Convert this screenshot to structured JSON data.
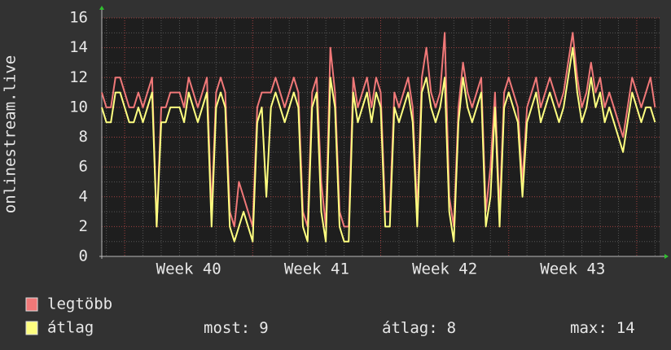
{
  "chart_data": {
    "type": "line",
    "y_label": "onlinestream.live",
    "xlim": [
      0,
      30.5
    ],
    "xticks": [
      {
        "value": 4.75,
        "label": "Week 40"
      },
      {
        "value": 11.75,
        "label": "Week 41"
      },
      {
        "value": 18.75,
        "label": "Week 42"
      },
      {
        "value": 25.75,
        "label": "Week 43"
      }
    ],
    "x_major_grid": [
      1.25,
      8.25,
      15.25,
      22.25,
      29.25
    ],
    "x_minor_grid": [
      0.25,
      2.25,
      3.25,
      4.25,
      5.25,
      6.25,
      7.25,
      9.25,
      10.25,
      11.25,
      12.25,
      13.25,
      14.25,
      16.25,
      17.25,
      18.25,
      19.25,
      20.25,
      21.25,
      23.25,
      24.25,
      25.25,
      26.25,
      27.25,
      28.25,
      30.25
    ],
    "ylim": [
      0,
      16
    ],
    "yticks": [
      0,
      2,
      4,
      6,
      8,
      10,
      12,
      14,
      16
    ],
    "y_minor_grid": [
      1,
      3,
      5,
      7,
      9,
      11,
      13,
      15
    ],
    "grid": true,
    "x": [
      0,
      0.25,
      0.5,
      0.75,
      1,
      1.25,
      1.5,
      1.75,
      2,
      2.25,
      2.5,
      2.75,
      3,
      3.25,
      3.5,
      3.75,
      4,
      4.25,
      4.5,
      4.75,
      5,
      5.25,
      5.5,
      5.75,
      6,
      6.25,
      6.5,
      6.75,
      7,
      7.25,
      7.5,
      7.75,
      8,
      8.25,
      8.5,
      8.75,
      9,
      9.25,
      9.5,
      9.75,
      10,
      10.25,
      10.5,
      10.75,
      11,
      11.25,
      11.5,
      11.75,
      12,
      12.25,
      12.5,
      12.75,
      13,
      13.25,
      13.5,
      13.75,
      14,
      14.25,
      14.5,
      14.75,
      15,
      15.25,
      15.5,
      15.75,
      16,
      16.25,
      16.5,
      16.75,
      17,
      17.25,
      17.5,
      17.75,
      18,
      18.25,
      18.5,
      18.75,
      19,
      19.25,
      19.5,
      19.75,
      20,
      20.25,
      20.5,
      20.75,
      21,
      21.25,
      21.5,
      21.75,
      22,
      22.25,
      22.5,
      22.75,
      23,
      23.25,
      23.5,
      23.75,
      24,
      24.25,
      24.5,
      24.75,
      25,
      25.25,
      25.5,
      25.75,
      26,
      26.25,
      26.5,
      26.75,
      27,
      27.25,
      27.5,
      27.75,
      28,
      28.25,
      28.5,
      28.75,
      29,
      29.25,
      29.5,
      29.75,
      30,
      30.25
    ],
    "series": [
      {
        "name": "legtöbb",
        "color": "#f07878",
        "values": [
          11,
          10,
          10,
          12,
          12,
          11,
          10,
          10,
          11,
          10,
          11,
          12,
          2,
          10,
          10,
          11,
          11,
          11,
          10,
          12,
          11,
          10,
          11,
          12,
          3,
          11,
          12,
          11,
          3,
          2,
          5,
          4,
          3,
          2,
          10,
          11,
          11,
          11,
          12,
          11,
          10,
          11,
          12,
          11,
          3,
          2,
          11,
          12,
          5,
          2,
          14,
          11,
          3,
          2,
          2,
          12,
          10,
          11,
          12,
          10,
          12,
          11,
          3,
          3,
          11,
          10,
          11,
          12,
          10,
          3,
          12,
          14,
          11,
          10,
          11,
          15,
          4,
          2,
          10,
          13,
          11,
          10,
          11,
          12,
          3,
          6,
          11,
          3,
          11,
          12,
          11,
          10,
          5,
          10,
          11,
          12,
          10,
          11,
          12,
          11,
          10,
          11,
          13,
          15,
          12,
          10,
          11,
          13,
          11,
          12,
          10,
          11,
          10,
          9,
          8,
          10,
          12,
          11,
          10,
          11,
          12,
          10
        ]
      },
      {
        "name": "átlag",
        "color": "#ffff80",
        "values": [
          10,
          9,
          9,
          11,
          11,
          10,
          9,
          9,
          10,
          9,
          10,
          11,
          2,
          9,
          9,
          10,
          10,
          10,
          9,
          11,
          10,
          9,
          10,
          11,
          2,
          10,
          11,
          10,
          2,
          1,
          2,
          3,
          2,
          1,
          9,
          10,
          4,
          10,
          11,
          10,
          9,
          10,
          11,
          10,
          2,
          1,
          10,
          11,
          3,
          1,
          12,
          10,
          2,
          1,
          1,
          11,
          9,
          10,
          11,
          9,
          11,
          10,
          2,
          2,
          10,
          9,
          10,
          11,
          9,
          2,
          11,
          12,
          10,
          9,
          10,
          12,
          3,
          1,
          9,
          12,
          10,
          9,
          10,
          11,
          2,
          4,
          10,
          2,
          10,
          11,
          10,
          9,
          4,
          9,
          10,
          11,
          9,
          10,
          11,
          10,
          9,
          10,
          12,
          14,
          11,
          9,
          10,
          12,
          10,
          11,
          9,
          10,
          9,
          8,
          7,
          9,
          11,
          10,
          9,
          10,
          10,
          9
        ]
      }
    ],
    "stats": [
      {
        "label": "most:",
        "value": 9
      },
      {
        "label": "átlag:",
        "value": 8
      },
      {
        "label": "max:",
        "value": 14
      }
    ]
  }
}
